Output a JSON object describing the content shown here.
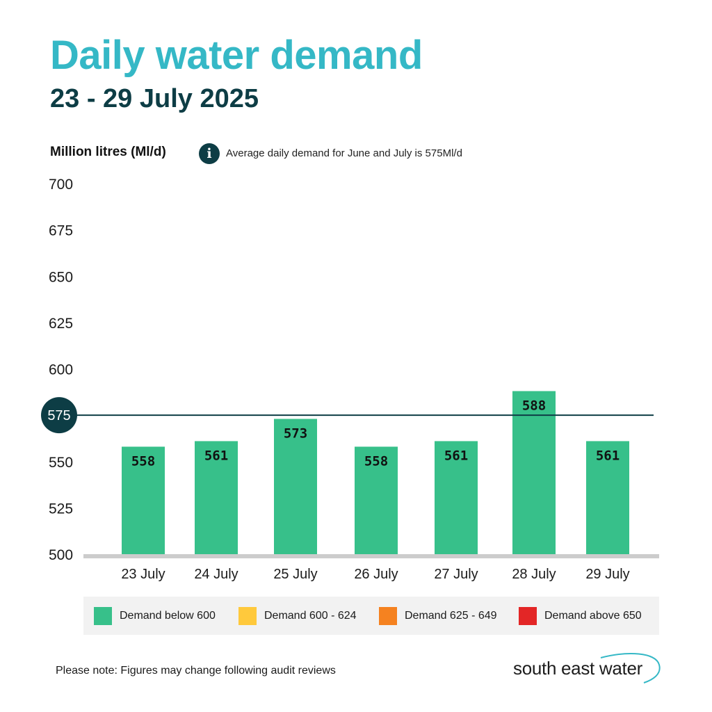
{
  "header": {
    "title": "Daily water demand",
    "subtitle": "23 - 29 July 2025"
  },
  "info": {
    "icon": "info-icon",
    "icon_glyph": "i",
    "text": "Average daily demand for June and July is 575Ml/d"
  },
  "chart_data": {
    "type": "bar",
    "title": "Daily water demand",
    "subtitle": "23 - 29 July 2025",
    "ylabel": "Million litres (Ml/d)",
    "xlabel": "",
    "categories": [
      "23 July",
      "24 July",
      "25 July",
      "26 July",
      "27 July",
      "28 July",
      "29 July"
    ],
    "values": [
      558,
      561,
      573,
      558,
      561,
      588,
      561
    ],
    "ylim": [
      500,
      700
    ],
    "yticks": [
      500,
      525,
      550,
      575,
      600,
      625,
      650,
      675,
      700
    ],
    "reference_line": {
      "value": 575,
      "label": "575"
    },
    "bar_color": "#37c08a",
    "reference_color": "#0d3d45",
    "grid": false
  },
  "legend": {
    "items": [
      {
        "label": "Demand below 600",
        "color": "#37c08a"
      },
      {
        "label": "Demand 600 - 624",
        "color": "#ffc93c"
      },
      {
        "label": "Demand 625 - 649",
        "color": "#f58220"
      },
      {
        "label": "Demand above 650",
        "color": "#e32626"
      }
    ]
  },
  "footer": {
    "note": "Please note: Figures may change following audit reviews",
    "brand": "south east water"
  }
}
